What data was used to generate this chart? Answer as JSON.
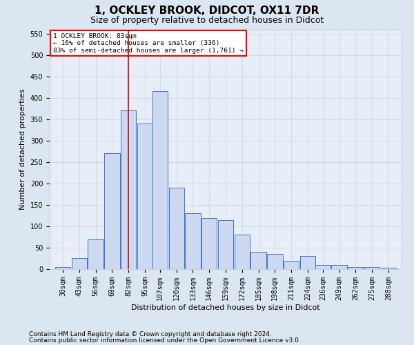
{
  "title1": "1, OCKLEY BROOK, DIDCOT, OX11 7DR",
  "title2": "Size of property relative to detached houses in Didcot",
  "xlabel": "Distribution of detached houses by size in Didcot",
  "ylabel": "Number of detached properties",
  "footnote1": "Contains HM Land Registry data © Crown copyright and database right 2024.",
  "footnote2": "Contains public sector information licensed under the Open Government Licence v3.0.",
  "annotation_line1": "1 OCKLEY BROOK: 83sqm",
  "annotation_line2": "← 16% of detached houses are smaller (336)",
  "annotation_line3": "83% of semi-detached houses are larger (1,761) →",
  "bar_color": "#ccd9f0",
  "bar_edge_color": "#4472c4",
  "vline_color": "#cc0000",
  "vline_x": 82,
  "categories": [
    30,
    43,
    56,
    69,
    82,
    95,
    107,
    120,
    133,
    146,
    159,
    172,
    185,
    198,
    211,
    224,
    236,
    249,
    262,
    275,
    288
  ],
  "bin_width": 13,
  "values": [
    5,
    25,
    70,
    270,
    370,
    340,
    415,
    190,
    130,
    120,
    115,
    80,
    40,
    35,
    20,
    30,
    10,
    10,
    5,
    5,
    3
  ],
  "ylim": [
    0,
    560
  ],
  "yticks": [
    0,
    50,
    100,
    150,
    200,
    250,
    300,
    350,
    400,
    450,
    500,
    550
  ],
  "grid_color": "#c8d0e0",
  "background_color": "#dce6f1",
  "axes_bg_color": "#e8eef8",
  "title1_fontsize": 11,
  "title2_fontsize": 9,
  "tick_fontsize": 7,
  "label_fontsize": 8,
  "footnote_fontsize": 6.5
}
